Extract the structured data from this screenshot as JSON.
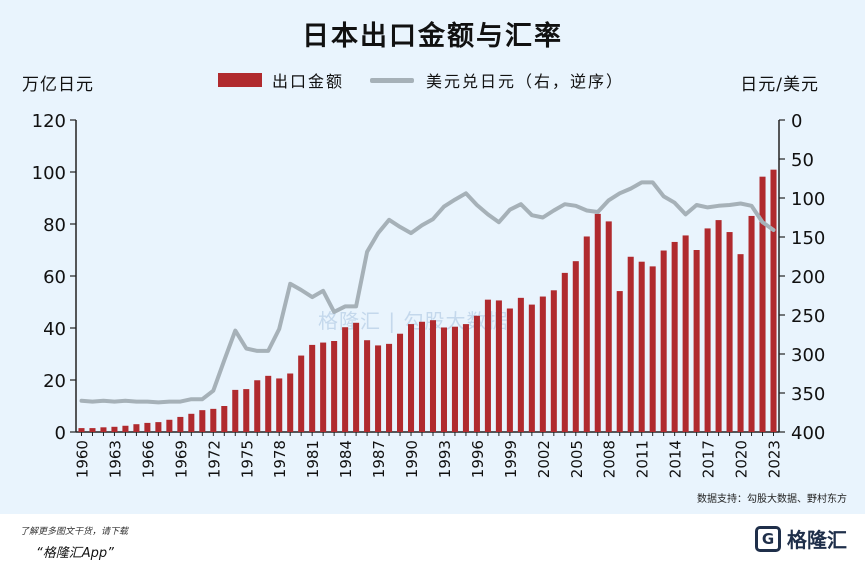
{
  "title": "日本出口金额与汇率",
  "legend": {
    "bar_label": "出口金额",
    "line_label": "美元兑日元（右，逆序）"
  },
  "ylabel_left": "万亿日元",
  "ylabel_right": "日元/美元",
  "source": "数据支持：勾股大数据、野村东方",
  "watermark": "格隆汇 | 勾股大数据",
  "footer": {
    "line1": "了解更多图文干货，请下载",
    "line2": "“格隆汇App”",
    "logo_text": "格隆汇"
  },
  "colors": {
    "bar": "#b02a2e",
    "line": "#a6b1b8",
    "background": "#e9f4fd"
  },
  "chart_data": {
    "type": "bar+line",
    "x": [
      1960,
      1961,
      1962,
      1963,
      1964,
      1965,
      1966,
      1967,
      1968,
      1969,
      1970,
      1971,
      1972,
      1973,
      1974,
      1975,
      1976,
      1977,
      1978,
      1979,
      1980,
      1981,
      1982,
      1983,
      1984,
      1985,
      1986,
      1987,
      1988,
      1989,
      1990,
      1991,
      1992,
      1993,
      1994,
      1995,
      1996,
      1997,
      1998,
      1999,
      2000,
      2001,
      2002,
      2003,
      2004,
      2005,
      2006,
      2007,
      2008,
      2009,
      2010,
      2011,
      2012,
      2013,
      2014,
      2015,
      2016,
      2017,
      2018,
      2019,
      2020,
      2021,
      2022,
      2023
    ],
    "x_tick_labels": [
      "1960",
      "1963",
      "1966",
      "1969",
      "1972",
      "1975",
      "1978",
      "1981",
      "1984",
      "1987",
      "1990",
      "1993",
      "1996",
      "1999",
      "2002",
      "2005",
      "2008",
      "2011",
      "2014",
      "2017",
      "2020",
      "2023"
    ],
    "series": [
      {
        "name": "出口金额",
        "type": "bar",
        "axis": "left",
        "values": [
          1.5,
          1.5,
          1.8,
          2.0,
          2.4,
          3.0,
          3.5,
          3.8,
          4.7,
          5.8,
          7.0,
          8.4,
          8.9,
          10.0,
          16.2,
          16.5,
          19.9,
          21.6,
          20.6,
          22.5,
          29.4,
          33.5,
          34.4,
          35.0,
          40.3,
          42.0,
          35.3,
          33.3,
          33.9,
          37.8,
          41.5,
          42.4,
          43.0,
          40.2,
          40.5,
          41.5,
          44.7,
          50.9,
          50.6,
          47.5,
          51.6,
          49.0,
          52.1,
          54.5,
          61.2,
          65.7,
          75.2,
          83.9,
          81.0,
          54.2,
          67.4,
          65.5,
          63.7,
          69.8,
          73.1,
          75.6,
          70.0,
          78.3,
          81.5,
          76.9,
          68.4,
          83.1,
          98.2,
          100.9
        ]
      },
      {
        "name": "美元兑日元（右，逆序）",
        "type": "line",
        "axis": "right",
        "values": [
          360,
          361,
          360,
          361,
          360,
          361,
          361,
          362,
          361,
          361,
          358,
          358,
          347,
          308,
          270,
          293,
          296,
          296,
          268,
          210,
          218,
          227,
          219,
          246,
          239,
          239,
          169,
          145,
          128,
          137,
          145,
          135,
          127,
          111,
          102,
          94,
          109,
          121,
          131,
          115,
          108,
          122,
          125,
          116,
          108,
          110,
          116,
          118,
          103,
          94,
          88,
          80,
          80,
          98,
          106,
          121,
          109,
          112,
          110,
          109,
          107,
          110,
          131,
          141
        ]
      }
    ],
    "y_left": {
      "range": [
        0,
        120
      ],
      "ticks": [
        0,
        20,
        40,
        60,
        80,
        100,
        120
      ]
    },
    "y_right": {
      "range": [
        400,
        0
      ],
      "inverted": true,
      "ticks": [
        0,
        50,
        100,
        150,
        200,
        250,
        300,
        350,
        400
      ]
    }
  }
}
